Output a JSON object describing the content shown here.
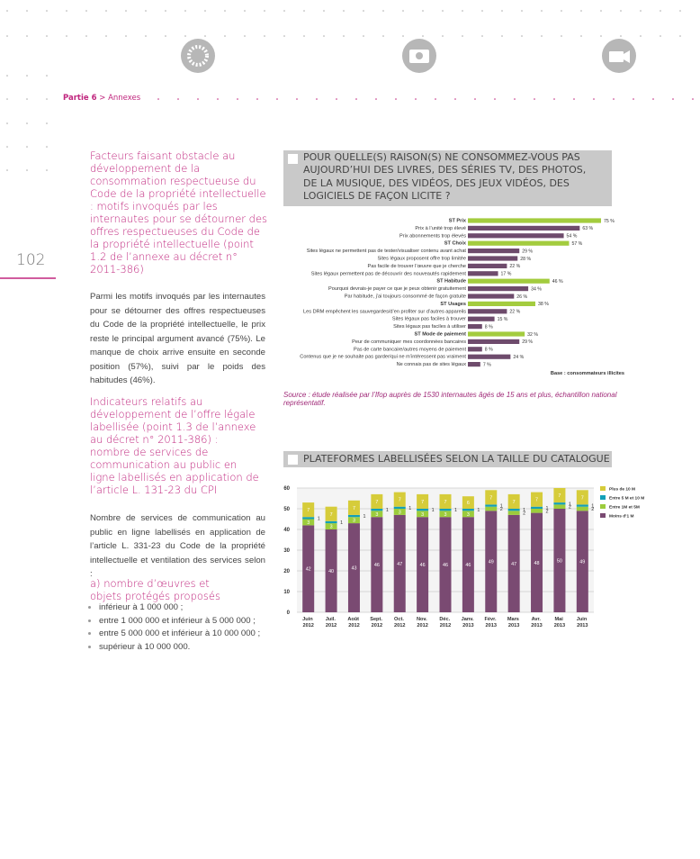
{
  "header": {
    "section": "Partie 6",
    "separator": ">",
    "subsection": "Annexes"
  },
  "page_number": "102",
  "left_column": {
    "heading_1": "Facteurs faisant obstacle au développement de la consommation respectueuse du Code de la propriété intellectuelle : motifs invoqués par les internautes pour se détourner des offres respectueuses du Code de la propriété intellectuelle (point 1.2 de l’annexe au décret n° 2011-386)",
    "paragraph_1": "Parmi les motifs invoqués par les internautes pour se détourner des offres respectueuses du Code de la propriété intellectuelle, le prix reste le principal argument avancé (75%). Le manque de choix arrive ensuite en seconde position (57%), suivi par le poids des habitudes (46%).",
    "heading_2": "Indicateurs relatifs au développement de l’offre légale labellisée (point 1.3 de l’annexe au décret n° 2011-386) : nombre de services de communication au public en ligne labellisés en application de l’article L. 131-23 du CPI",
    "paragraph_2": "Nombre de services de communication au public en ligne labellisés en application de l’article L. 331-23 du Code de la propriété intellectuelle et ventilation des services selon :",
    "subheading": "a) nombre d’œuvres et objets protégés proposés",
    "list": [
      "inférieur à 1 000 000 ;",
      "entre 1 000 000 et inférieur à 5 000 000 ;",
      "entre 5 000 000 et inférieur à 10 000 000 ;",
      "supérieur à 10 000 000."
    ]
  },
  "chart_data": [
    {
      "type": "hbar",
      "title": "POUR QUELLE(S) RAISON(S) NE CONSOMMEZ-VOUS PAS AUJOURD’HUI DES LIVRES, DES SÉRIES TV, DES PHOTOS, DE LA MUSIQUE, DES VIDÉOS, DES JEUX VIDÉOS, DES LOGICIELS DE FAÇON LICITE ?",
      "categories": [
        "ST Prix",
        "Prix à l’unité trop élevé",
        "Prix abonnements trop élevés",
        "ST Choix",
        "Sites légaux ne permettent pas de tester/visualiser contenu avant achat",
        "Sites légaux proposent offre trop limitée",
        "Pas facile de trouver l’œuvre que je cherche",
        "Sites légaux permettent pas de découvrir des nouveautés rapidement",
        "ST Habitude",
        "Pourquoi devrais-je payer ce que je peux obtenir gratuitement",
        "Par habitude, j’ai toujours consommé de façon gratuite",
        "ST Usages",
        "Les DRM empêchent les sauvegardes/d’en profiter sur d’autres appareils",
        "Sites légaux pas faciles à trouver",
        "Sites légaux pas faciles à utiliser",
        "ST Mode de paiement",
        "Peur de communiquer mes coordonnées bancaires",
        "Pas de carte bancaire/autres moyens de paiement",
        "Contenus que je ne souhaite pas garder/qui ne m’intéressent pas vraiment",
        "Ne connais pas de sites légaux"
      ],
      "values": [
        75,
        63,
        54,
        57,
        29,
        28,
        22,
        17,
        46,
        34,
        26,
        38,
        22,
        15,
        8,
        32,
        29,
        8,
        24,
        7
      ],
      "value_labels": [
        "75 %",
        "63 %",
        "54 %",
        "57 %",
        "29 %",
        "28 %",
        "22 %",
        "17 %",
        "46 %",
        "34 %",
        "26 %",
        "38 %",
        "22 %",
        "15 %",
        "8 %",
        "32 %",
        "29 %",
        "8 %",
        "24 %",
        "7 %"
      ],
      "colors": [
        "#a3cc3e",
        "#6e4b6c",
        "#6e4b6c",
        "#a3cc3e",
        "#6e4b6c",
        "#6e4b6c",
        "#6e4b6c",
        "#6e4b6c",
        "#a3cc3e",
        "#6e4b6c",
        "#6e4b6c",
        "#a3cc3e",
        "#6e4b6c",
        "#6e4b6c",
        "#6e4b6c",
        "#a3cc3e",
        "#6e4b6c",
        "#6e4b6c",
        "#6e4b6c",
        "#6e4b6c"
      ],
      "note": "Base : consommateurs illicites",
      "source": "Source : étude réalisée par l’Ifop auprès de 1530 internautes âgés de 15 ans et plus, échantillon national représentatif."
    },
    {
      "type": "stacked_bar",
      "title": "PLATEFORMES LABELLISÉES SELON LA TAILLE DU CATALOGUE",
      "categories": [
        "Juin 2012",
        "Juil. 2012",
        "Août 2012",
        "Sept. 2012",
        "Oct. 2012",
        "Nov. 2012",
        "Déc. 2012",
        "Janv. 2013",
        "Févr. 2013",
        "Mars 2013",
        "Avr. 2013",
        "Mai 2013",
        "Juin 2013"
      ],
      "series": [
        {
          "name": "Moins d’1 M",
          "color": "#7a4a72",
          "values": [
            42,
            40,
            43,
            46,
            47,
            46,
            46,
            46,
            49,
            47,
            48,
            50,
            49
          ]
        },
        {
          "name": "Entre 1M et 5M",
          "color": "#9ccc3c",
          "values": [
            3,
            3,
            3,
            3,
            3,
            3,
            3,
            3,
            2,
            2,
            2,
            2,
            2
          ]
        },
        {
          "name": "Entre 5 M et 10 M",
          "color": "#12a0b8",
          "values": [
            1,
            1,
            1,
            1,
            1,
            1,
            1,
            1,
            1,
            1,
            1,
            1,
            1
          ]
        },
        {
          "name": "Plus de 10 M",
          "color": "#d6cc3a",
          "values": [
            7,
            7,
            7,
            7,
            7,
            7,
            7,
            6,
            7,
            7,
            7,
            7,
            7
          ]
        }
      ],
      "ylim": [
        0,
        60
      ],
      "yticks": [
        0,
        10,
        20,
        30,
        40,
        50,
        60
      ],
      "grid": true,
      "legend": "right"
    }
  ]
}
